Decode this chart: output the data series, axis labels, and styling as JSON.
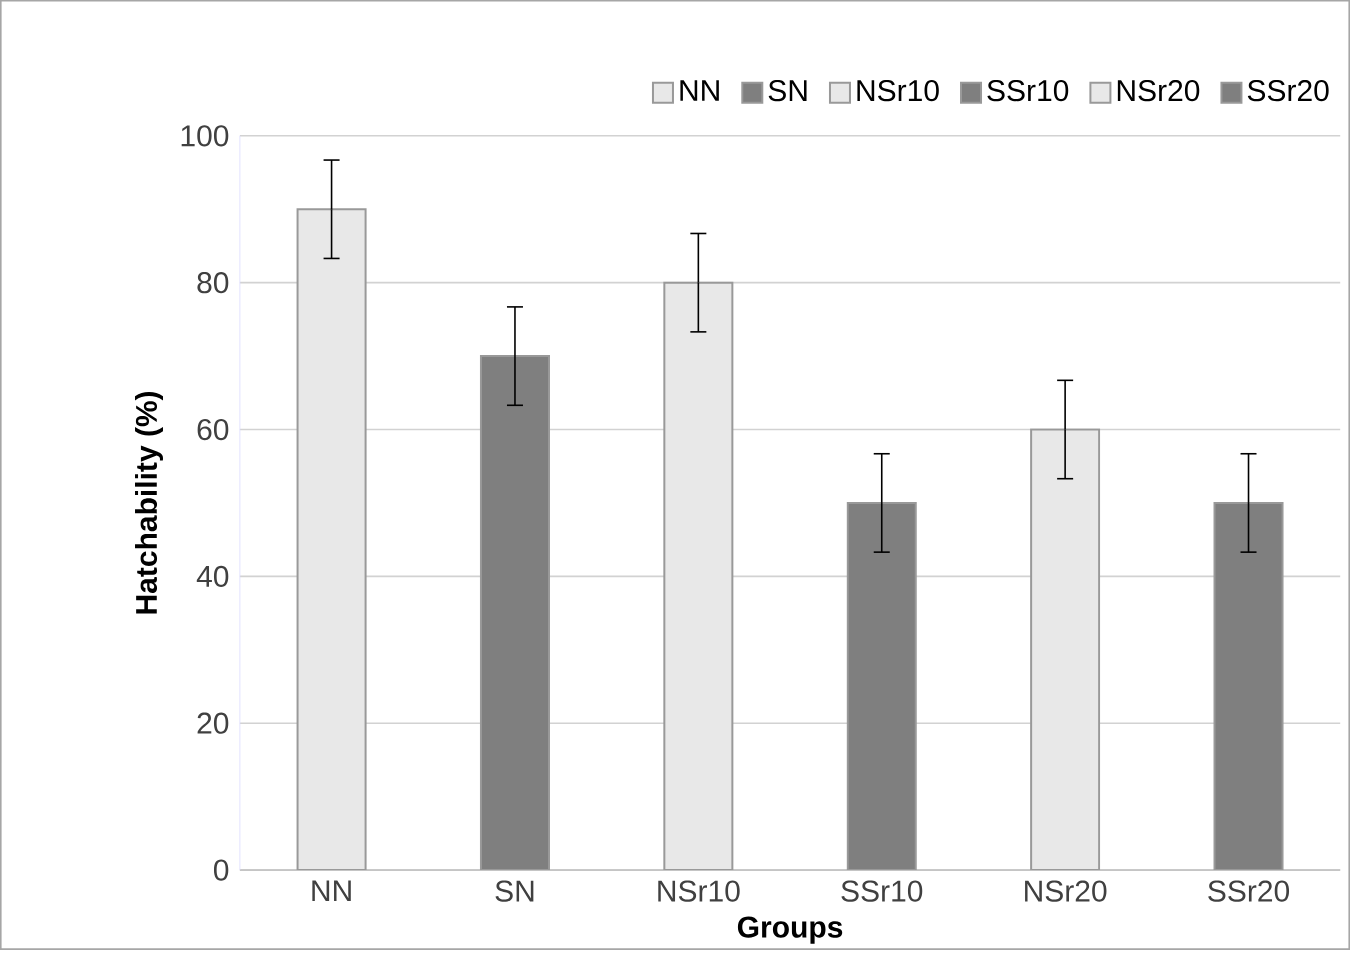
{
  "chart_data": {
    "type": "bar",
    "xlabel": "Groups",
    "ylabel": "Hatchability (%)",
    "categories": [
      "NN",
      "SN",
      "NSr10",
      "SSr10",
      "NSr20",
      "SSr20"
    ],
    "series": [
      {
        "name": "NN",
        "color": "#e8e8e8",
        "values": [
          90,
          null,
          null,
          null,
          null,
          null
        ],
        "errors": [
          6.7,
          null,
          null,
          null,
          null,
          null
        ]
      },
      {
        "name": "SN",
        "color": "#7f7f7f",
        "values": [
          null,
          70,
          null,
          null,
          null,
          null
        ],
        "errors": [
          null,
          6.7,
          null,
          null,
          null,
          null
        ]
      },
      {
        "name": "NSr10",
        "color": "#e8e8e8",
        "values": [
          null,
          null,
          80,
          null,
          null,
          null
        ],
        "errors": [
          null,
          null,
          6.7,
          null,
          null,
          null
        ]
      },
      {
        "name": "SSr10",
        "color": "#7f7f7f",
        "values": [
          null,
          null,
          null,
          50,
          null,
          null
        ],
        "errors": [
          null,
          null,
          null,
          6.7,
          null,
          null
        ]
      },
      {
        "name": "NSr20",
        "color": "#e8e8e8",
        "values": [
          null,
          null,
          null,
          null,
          60,
          null
        ],
        "errors": [
          null,
          null,
          null,
          null,
          6.7,
          null
        ]
      },
      {
        "name": "SSr20",
        "color": "#7f7f7f",
        "values": [
          null,
          null,
          null,
          null,
          null,
          50
        ],
        "errors": [
          null,
          null,
          null,
          null,
          null,
          6.7
        ]
      }
    ],
    "ylim": [
      0,
      100
    ],
    "yticks": [
      0,
      20,
      40,
      60,
      80,
      100
    ],
    "grid": "y",
    "legend": "top"
  }
}
